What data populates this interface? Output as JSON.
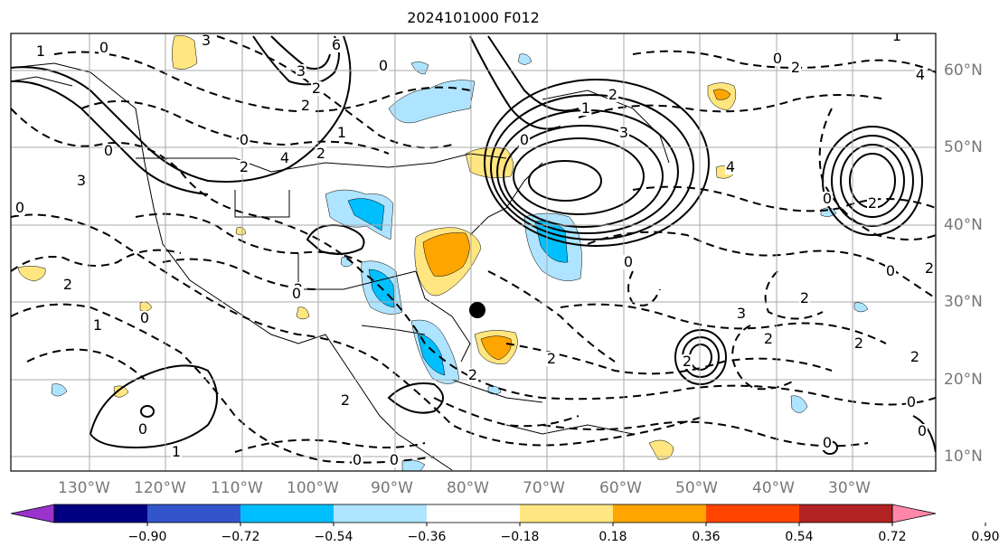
{
  "title": "2024101000 F012",
  "lon_labels": [
    "130°W",
    "120°W",
    "110°W",
    "100°W",
    "90°W",
    "80°W",
    "70°W",
    "60°W",
    "50°W",
    "40°W",
    "30°W"
  ],
  "lat_labels": [
    "60°N",
    "50°N",
    "40°N",
    "30°N",
    "20°N",
    "10°N"
  ],
  "contour_labels": [
    "1",
    "0",
    "3",
    "6",
    "3",
    "2",
    "0",
    "2",
    "1",
    "0",
    "0",
    "2",
    "4",
    "2",
    "3",
    "0",
    "2",
    "0",
    "2",
    "0",
    "1",
    "2",
    "1",
    "0",
    "2",
    "0",
    "0",
    "2",
    "0",
    "2",
    "1",
    "3",
    "2",
    "0",
    "2",
    "4",
    "2",
    "0",
    "0",
    "2",
    "2",
    "3",
    "4",
    "2",
    "1",
    "0",
    "2",
    "2",
    "0",
    "0",
    "0"
  ],
  "colorbar": {
    "ticks": [
      "−0.90",
      "−0.72",
      "−0.54",
      "−0.36",
      "−0.18",
      "0.18",
      "0.36",
      "0.54",
      "0.72",
      "0.90"
    ],
    "colors": [
      "#9933cc",
      "#000080",
      "#3355cc",
      "#00bfff",
      "#aee4ff",
      "#ffffff",
      "#ffe680",
      "#ffa500",
      "#ff4500",
      "#b22222",
      "#ff88aa"
    ]
  },
  "legend_colors": {
    "negative_light": "#aee4ff",
    "negative": "#00bfff",
    "positive_light": "#ffe680",
    "positive": "#ffa500"
  }
}
